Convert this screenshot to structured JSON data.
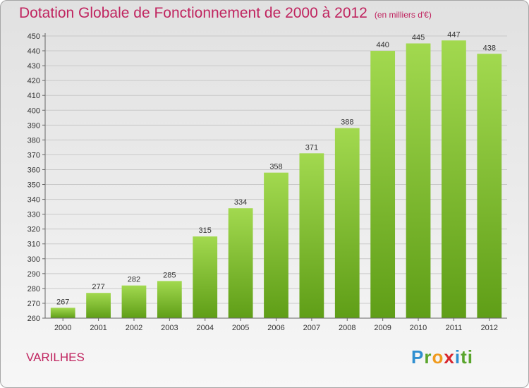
{
  "header": {
    "title": "Dotation Globale de Fonctionnement de 2000 à 2012",
    "subtitle": "(en milliers d'€)"
  },
  "footer": {
    "town": "VARILHES",
    "logo_letters": [
      "P",
      "r",
      "o",
      "x",
      "i",
      "ti"
    ]
  },
  "colors": {
    "title": "#c0245f",
    "bar_light": "#a2d94f",
    "bar_dark": "#5f9e17"
  },
  "chart_data": {
    "type": "bar",
    "title": "Dotation Globale de Fonctionnement de 2000 à 2012",
    "subtitle": "(en milliers d'€)",
    "categories": [
      "2000",
      "2001",
      "2002",
      "2003",
      "2004",
      "2005",
      "2006",
      "2007",
      "2008",
      "2009",
      "2010",
      "2011",
      "2012"
    ],
    "values": [
      267,
      277,
      282,
      285,
      315,
      334,
      358,
      371,
      388,
      440,
      445,
      447,
      438
    ],
    "xlabel": "",
    "ylabel": "",
    "ylim": [
      260,
      450
    ],
    "ytick_step": 10,
    "grid": true,
    "data_labels": true
  }
}
